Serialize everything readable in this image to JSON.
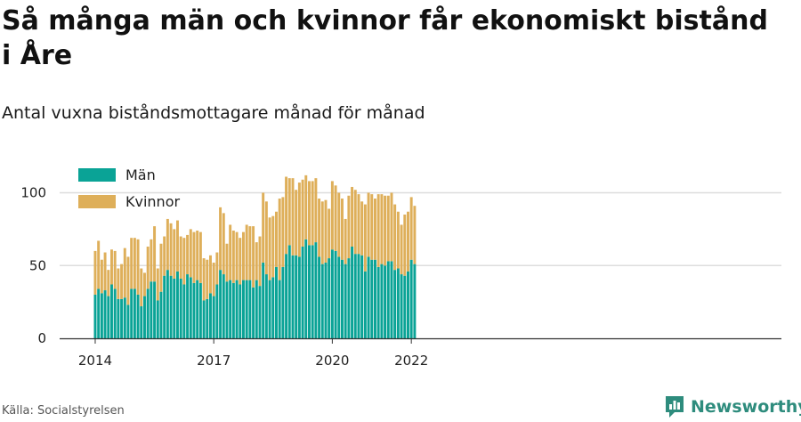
{
  "title": "Så många män och kvinnor får ekonomiskt bistånd i Åre",
  "subtitle": "Antal vuxna biståndsmottagare månad för månad",
  "source": "Källa: Socialstyrelsen",
  "brand": "Newsworthy",
  "colors": {
    "men": "#0aa396",
    "women": "#deaf5a",
    "grid": "#dddddd",
    "axis": "#333333",
    "brand": "#2e8c7d"
  },
  "chart_data": {
    "type": "bar",
    "stacked": true,
    "title": "Så många män och kvinnor får ekonomiskt bistånd i Åre",
    "subtitle": "Antal vuxna biståndsmottagare månad för månad",
    "x_start": "2014-01",
    "x_ticks": [
      "2014",
      "2017",
      "2020",
      "2022"
    ],
    "y_ticks": [
      0,
      50,
      100
    ],
    "ylim": [
      0,
      115
    ],
    "grid": true,
    "legend_position": "top-left",
    "series": [
      {
        "name": "Män",
        "color": "#0aa396",
        "values": [
          30,
          34,
          31,
          33,
          29,
          37,
          34,
          27,
          27,
          28,
          23,
          34,
          34,
          30,
          22,
          29,
          34,
          39,
          39,
          26,
          32,
          43,
          47,
          43,
          41,
          46,
          41,
          37,
          44,
          42,
          38,
          40,
          38,
          26,
          27,
          31,
          29,
          37,
          47,
          44,
          39,
          40,
          38,
          40,
          37,
          40,
          40,
          40,
          35,
          40,
          36,
          52,
          44,
          40,
          42,
          49,
          40,
          49,
          58,
          64,
          57,
          57,
          56,
          63,
          68,
          64,
          64,
          66,
          56,
          51,
          52,
          55,
          61,
          60,
          56,
          54,
          51,
          55,
          63,
          58,
          58,
          57,
          46,
          56,
          54,
          54,
          49,
          51,
          50,
          53,
          53,
          47,
          48,
          44,
          43,
          46,
          54,
          51
        ]
      },
      {
        "name": "Kvinnor",
        "color": "#deaf5a",
        "values": [
          30,
          33,
          23,
          26,
          18,
          24,
          26,
          21,
          24,
          34,
          33,
          35,
          35,
          38,
          26,
          16,
          29,
          29,
          38,
          22,
          33,
          27,
          35,
          36,
          34,
          35,
          29,
          32,
          27,
          33,
          35,
          34,
          35,
          29,
          27,
          26,
          23,
          22,
          43,
          42,
          26,
          38,
          36,
          33,
          32,
          33,
          38,
          37,
          42,
          26,
          34,
          48,
          50,
          43,
          42,
          38,
          56,
          48,
          53,
          46,
          53,
          45,
          51,
          46,
          44,
          44,
          44,
          44,
          40,
          43,
          43,
          34,
          47,
          45,
          44,
          42,
          31,
          43,
          41,
          44,
          41,
          37,
          46,
          44,
          45,
          42,
          50,
          48,
          48,
          45,
          47,
          45,
          39,
          34,
          42,
          41,
          43,
          40
        ]
      }
    ]
  }
}
